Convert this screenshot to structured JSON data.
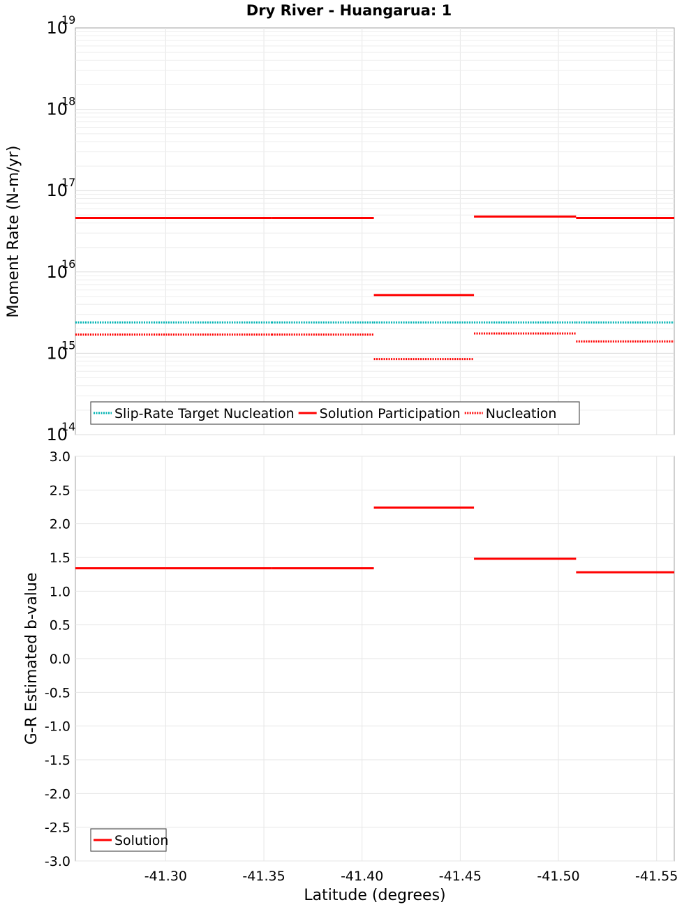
{
  "chart_data": {
    "type": "line",
    "title": "Dry River - Huangarua: 1",
    "xlabel": "Latitude (degrees)",
    "x_ticks": [
      "-41.30",
      "-41.35",
      "-41.40",
      "-41.45",
      "-41.50",
      "-41.55"
    ],
    "x_tick_values": [
      -41.3,
      -41.35,
      -41.4,
      -41.45,
      -41.5,
      -41.55
    ],
    "xlim": [
      -41.254,
      -41.559
    ],
    "segments": [
      {
        "x0": -41.254,
        "x1": -41.3
      },
      {
        "x0": -41.3,
        "x1": -41.354
      },
      {
        "x0": -41.354,
        "x1": -41.406
      },
      {
        "x0": -41.406,
        "x1": -41.457
      },
      {
        "x0": -41.457,
        "x1": -41.509
      },
      {
        "x0": -41.509,
        "x1": -41.559
      }
    ],
    "panels": [
      {
        "ylabel": "Moment Rate (N-m/yr)",
        "yscale": "log",
        "ylim": [
          100000000000000.0,
          1e+19
        ],
        "y_tick_exponents": [
          "14",
          "15",
          "16",
          "17",
          "18",
          "19"
        ],
        "y_tick_base": "10",
        "series": [
          {
            "name": "Slip-Rate Target Nucleation",
            "color": "#00b3b3",
            "style": "dotted",
            "values": [
              2400000000000000.0,
              2400000000000000.0,
              2400000000000000.0,
              2400000000000000.0,
              2400000000000000.0,
              2400000000000000.0
            ]
          },
          {
            "name": "Solution Participation",
            "color": "#ff0000",
            "style": "solid",
            "values": [
              4.6e+16,
              4.6e+16,
              4.6e+16,
              5200000000000000.0,
              4.8e+16,
              4.6e+16
            ]
          },
          {
            "name": "Nucleation",
            "color": "#ff0000",
            "style": "dotted",
            "values": [
              1700000000000000.0,
              1700000000000000.0,
              1700000000000000.0,
              850000000000000.0,
              1750000000000000.0,
              1400000000000000.0
            ]
          }
        ],
        "legend": [
          "Slip-Rate Target Nucleation",
          "Solution Participation",
          "Nucleation"
        ]
      },
      {
        "ylabel": "G-R Estimated b-value",
        "yscale": "linear",
        "ylim": [
          -3.0,
          3.0
        ],
        "y_ticks": [
          "3.0",
          "2.5",
          "2.0",
          "1.5",
          "1.0",
          "0.5",
          "0.0",
          "-0.5",
          "-1.0",
          "-1.5",
          "-2.0",
          "-2.5",
          "-3.0"
        ],
        "y_tick_values": [
          3.0,
          2.5,
          2.0,
          1.5,
          1.0,
          0.5,
          0.0,
          -0.5,
          -1.0,
          -1.5,
          -2.0,
          -2.5,
          -3.0
        ],
        "series": [
          {
            "name": "Solution",
            "color": "#ff0000",
            "style": "solid",
            "values": [
              1.34,
              1.34,
              1.34,
              2.24,
              1.48,
              1.28
            ]
          }
        ],
        "legend": [
          "Solution"
        ]
      }
    ]
  }
}
